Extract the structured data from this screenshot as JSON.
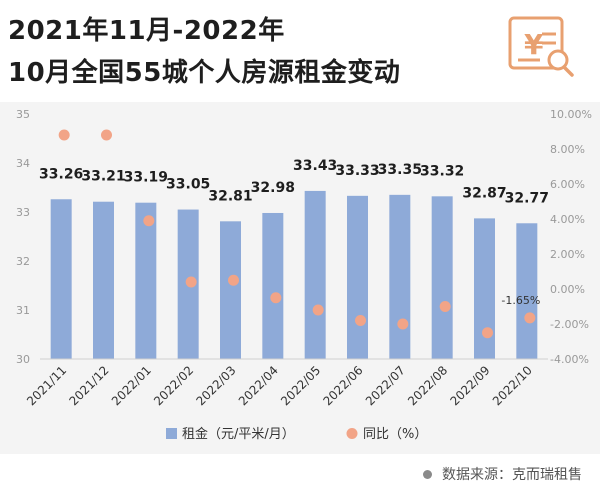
{
  "title": {
    "line1": "2021年11月-2022年",
    "line2": "10月全国55城个人房源租金变动"
  },
  "logo": {
    "icon": "yuan-document-search-icon",
    "color": "#e8a070"
  },
  "source": "数据来源：克而瑞租售",
  "chart_data": {
    "type": "bar",
    "categories": [
      "2021/11",
      "2021/12",
      "2022/01",
      "2022/02",
      "2022/03",
      "2022/04",
      "2022/05",
      "2022/06",
      "2022/07",
      "2022/08",
      "2022/09",
      "2022/10"
    ],
    "series": [
      {
        "name": "租金（元/平米/月）",
        "kind": "bar",
        "axis": "left",
        "color": "#8eaad8",
        "values": [
          33.26,
          33.21,
          33.19,
          33.05,
          32.81,
          32.98,
          33.43,
          33.33,
          33.35,
          33.32,
          32.87,
          32.77
        ],
        "labels": [
          "33.26",
          "33.21",
          "33.19",
          "33.05",
          "32.81",
          "32.98",
          "33.43",
          "33.33",
          "33.35",
          "33.32",
          "32.87",
          "32.77"
        ]
      },
      {
        "name": "同比（%）",
        "kind": "scatter",
        "axis": "right",
        "color": "#f2a487",
        "values": [
          8.8,
          8.8,
          3.9,
          0.4,
          0.5,
          -0.5,
          -1.2,
          -1.8,
          -2.0,
          -1.0,
          -2.5,
          -1.65
        ],
        "labels": [
          "",
          "",
          "",
          "",
          "",
          "",
          "",
          "",
          "",
          "",
          "",
          "-1.65%"
        ]
      }
    ],
    "ylim": [
      30,
      35
    ],
    "y_ticks": [
      "30",
      "31",
      "32",
      "33",
      "34",
      "35"
    ],
    "y2lim": [
      -4,
      10
    ],
    "y2_ticks": [
      "-4.00%",
      "-2.00%",
      "0.00%",
      "2.00%",
      "4.00%",
      "6.00%",
      "8.00%",
      "10.00%"
    ],
    "grid": false,
    "legend_position": "bottom"
  }
}
